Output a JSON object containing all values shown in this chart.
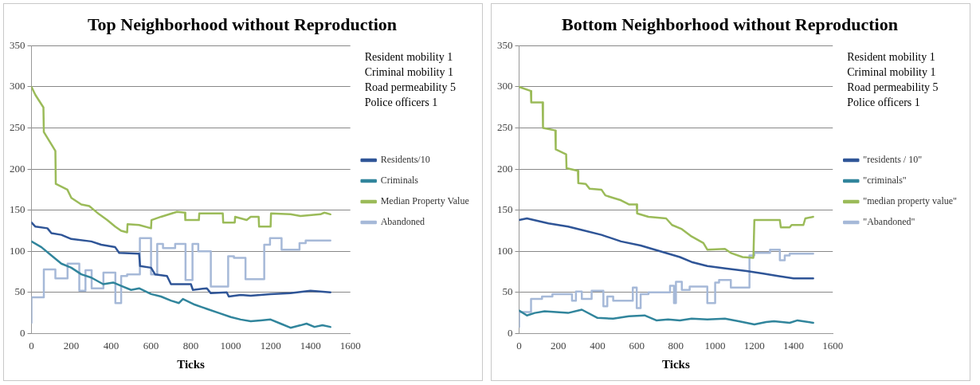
{
  "chart_data": [
    {
      "type": "line",
      "title": "Top Neighborhood without Reproduction",
      "xlabel": "Ticks",
      "xlim": [
        0,
        1600
      ],
      "xticks": [
        0,
        200,
        400,
        600,
        800,
        1000,
        1200,
        1400,
        1600
      ],
      "ylim": [
        0,
        350
      ],
      "yticks": [
        0,
        50,
        100,
        150,
        200,
        250,
        300,
        350
      ],
      "grid": "y",
      "legend": "right",
      "marker": "none",
      "annotations": [
        "Resident mobility 1",
        "Criminal mobility 1",
        "Road permeability 5",
        "Police officers 1"
      ],
      "series": [
        {
          "name": "Residents/10",
          "color": "#2f5597",
          "type": "line",
          "x": [
            0,
            20,
            80,
            100,
            150,
            200,
            300,
            350,
            420,
            440,
            540,
            545,
            600,
            620,
            680,
            700,
            800,
            810,
            880,
            900,
            980,
            990,
            1050,
            1100,
            1200,
            1300,
            1400,
            1500
          ],
          "values": [
            135,
            130,
            128,
            122,
            120,
            115,
            112,
            108,
            105,
            98,
            97,
            82,
            80,
            72,
            70,
            60,
            60,
            53,
            55,
            49,
            50,
            45,
            47,
            46,
            48,
            49,
            52,
            50
          ]
        },
        {
          "name": "Criminals",
          "color": "#31859c",
          "type": "line",
          "x": [
            0,
            50,
            100,
            150,
            200,
            250,
            300,
            360,
            410,
            450,
            500,
            540,
            600,
            650,
            700,
            740,
            760,
            820,
            880,
            940,
            1000,
            1050,
            1100,
            1150,
            1200,
            1250,
            1300,
            1350,
            1380,
            1420,
            1460,
            1500
          ],
          "values": [
            112,
            105,
            95,
            85,
            80,
            72,
            68,
            60,
            62,
            58,
            53,
            55,
            48,
            45,
            40,
            37,
            42,
            35,
            30,
            25,
            20,
            17,
            15,
            16,
            17,
            12,
            7,
            10,
            12,
            8,
            10,
            8
          ]
        },
        {
          "name": "Median Property Value",
          "color": "#9bbb59",
          "type": "line",
          "x": [
            0,
            20,
            60,
            62,
            100,
            120,
            122,
            180,
            200,
            250,
            290,
            340,
            380,
            420,
            450,
            480,
            482,
            540,
            600,
            602,
            650,
            730,
            770,
            772,
            840,
            842,
            960,
            962,
            1020,
            1022,
            1080,
            1100,
            1140,
            1142,
            1200,
            1202,
            1300,
            1350,
            1450,
            1470,
            1500
          ],
          "values": [
            300,
            290,
            275,
            245,
            230,
            222,
            182,
            175,
            165,
            157,
            155,
            145,
            138,
            130,
            125,
            123,
            133,
            132,
            128,
            138,
            142,
            148,
            147,
            138,
            138,
            146,
            146,
            135,
            135,
            142,
            138,
            142,
            142,
            130,
            130,
            146,
            145,
            143,
            145,
            147,
            145
          ]
        },
        {
          "name": "Abandoned",
          "color": "#a6b9d8",
          "type": "step",
          "x": [
            0,
            62,
            120,
            181,
            240,
            271,
            302,
            361,
            421,
            450,
            480,
            544,
            600,
            631,
            660,
            721,
            773,
            808,
            837,
            900,
            987,
            1016,
            1074,
            1168,
            1197,
            1255,
            1345,
            1376,
            1430,
            1500
          ],
          "values": [
            13,
            44,
            78,
            67,
            85,
            52,
            77,
            55,
            74,
            37,
            70,
            72,
            116,
            72,
            109,
            104,
            109,
            65,
            109,
            100,
            57,
            94,
            92,
            66,
            108,
            116,
            102,
            110,
            113,
            113
          ]
        }
      ]
    },
    {
      "type": "line",
      "title": "Bottom Neighborhood without Reproduction",
      "xlabel": "Ticks",
      "xlim": [
        0,
        1600
      ],
      "xticks": [
        0,
        200,
        400,
        600,
        800,
        1000,
        1200,
        1400,
        1600
      ],
      "ylim": [
        0,
        350
      ],
      "yticks": [
        0,
        50,
        100,
        150,
        200,
        250,
        300,
        350
      ],
      "grid": "y",
      "legend": "right",
      "marker": "none",
      "annotations": [
        "Resident mobility 1",
        "Criminal mobility 1",
        "Road permeability 5",
        "Police officers 1"
      ],
      "series": [
        {
          "name": "\"residents / 10\"",
          "color": "#2f5597",
          "type": "line",
          "x": [
            0,
            40,
            150,
            250,
            320,
            420,
            520,
            620,
            720,
            820,
            880,
            960,
            1060,
            1160,
            1240,
            1320,
            1400,
            1500
          ],
          "values": [
            138,
            140,
            134,
            130,
            126,
            120,
            112,
            107,
            100,
            93,
            87,
            82,
            79,
            76,
            73,
            70,
            67,
            67
          ]
        },
        {
          "name": "\"criminals\"",
          "color": "#31859c",
          "type": "line",
          "x": [
            0,
            40,
            80,
            130,
            250,
            320,
            400,
            480,
            560,
            640,
            700,
            760,
            820,
            880,
            960,
            1050,
            1120,
            1200,
            1260,
            1300,
            1380,
            1420,
            1500
          ],
          "values": [
            28,
            22,
            25,
            27,
            25,
            29,
            19,
            18,
            21,
            22,
            16,
            17,
            16,
            18,
            17,
            18,
            15,
            11,
            14,
            15,
            13,
            16,
            13
          ]
        },
        {
          "name": "\"median property value\"",
          "color": "#9bbb59",
          "type": "line",
          "x": [
            0,
            60,
            62,
            120,
            122,
            185,
            187,
            240,
            242,
            300,
            302,
            340,
            360,
            420,
            440,
            480,
            520,
            560,
            600,
            602,
            660,
            750,
            780,
            830,
            880,
            940,
            960,
            1050,
            1080,
            1140,
            1195,
            1200,
            1330,
            1335,
            1380,
            1390,
            1450,
            1460,
            1500
          ],
          "values": [
            300,
            295,
            281,
            281,
            250,
            247,
            224,
            218,
            201,
            198,
            183,
            182,
            176,
            175,
            168,
            165,
            162,
            157,
            157,
            146,
            142,
            140,
            132,
            127,
            118,
            110,
            102,
            103,
            98,
            93,
            92,
            138,
            138,
            129,
            129,
            132,
            132,
            140,
            142
          ]
        },
        {
          "name": "\"Abandoned\"",
          "color": "#a6b9d8",
          "type": "step",
          "x": [
            0,
            61,
            117,
            170,
            270,
            290,
            320,
            370,
            430,
            450,
            480,
            580,
            600,
            620,
            660,
            770,
            790,
            800,
            830,
            870,
            960,
            1000,
            1020,
            1080,
            1175,
            1200,
            1280,
            1330,
            1355,
            1380,
            1450,
            1500
          ],
          "values": [
            8,
            26,
            42,
            45,
            48,
            40,
            51,
            42,
            52,
            33,
            45,
            40,
            56,
            31,
            48,
            50,
            58,
            37,
            63,
            53,
            57,
            37,
            62,
            65,
            56,
            95,
            98,
            102,
            89,
            95,
            97,
            97
          ]
        }
      ]
    }
  ]
}
